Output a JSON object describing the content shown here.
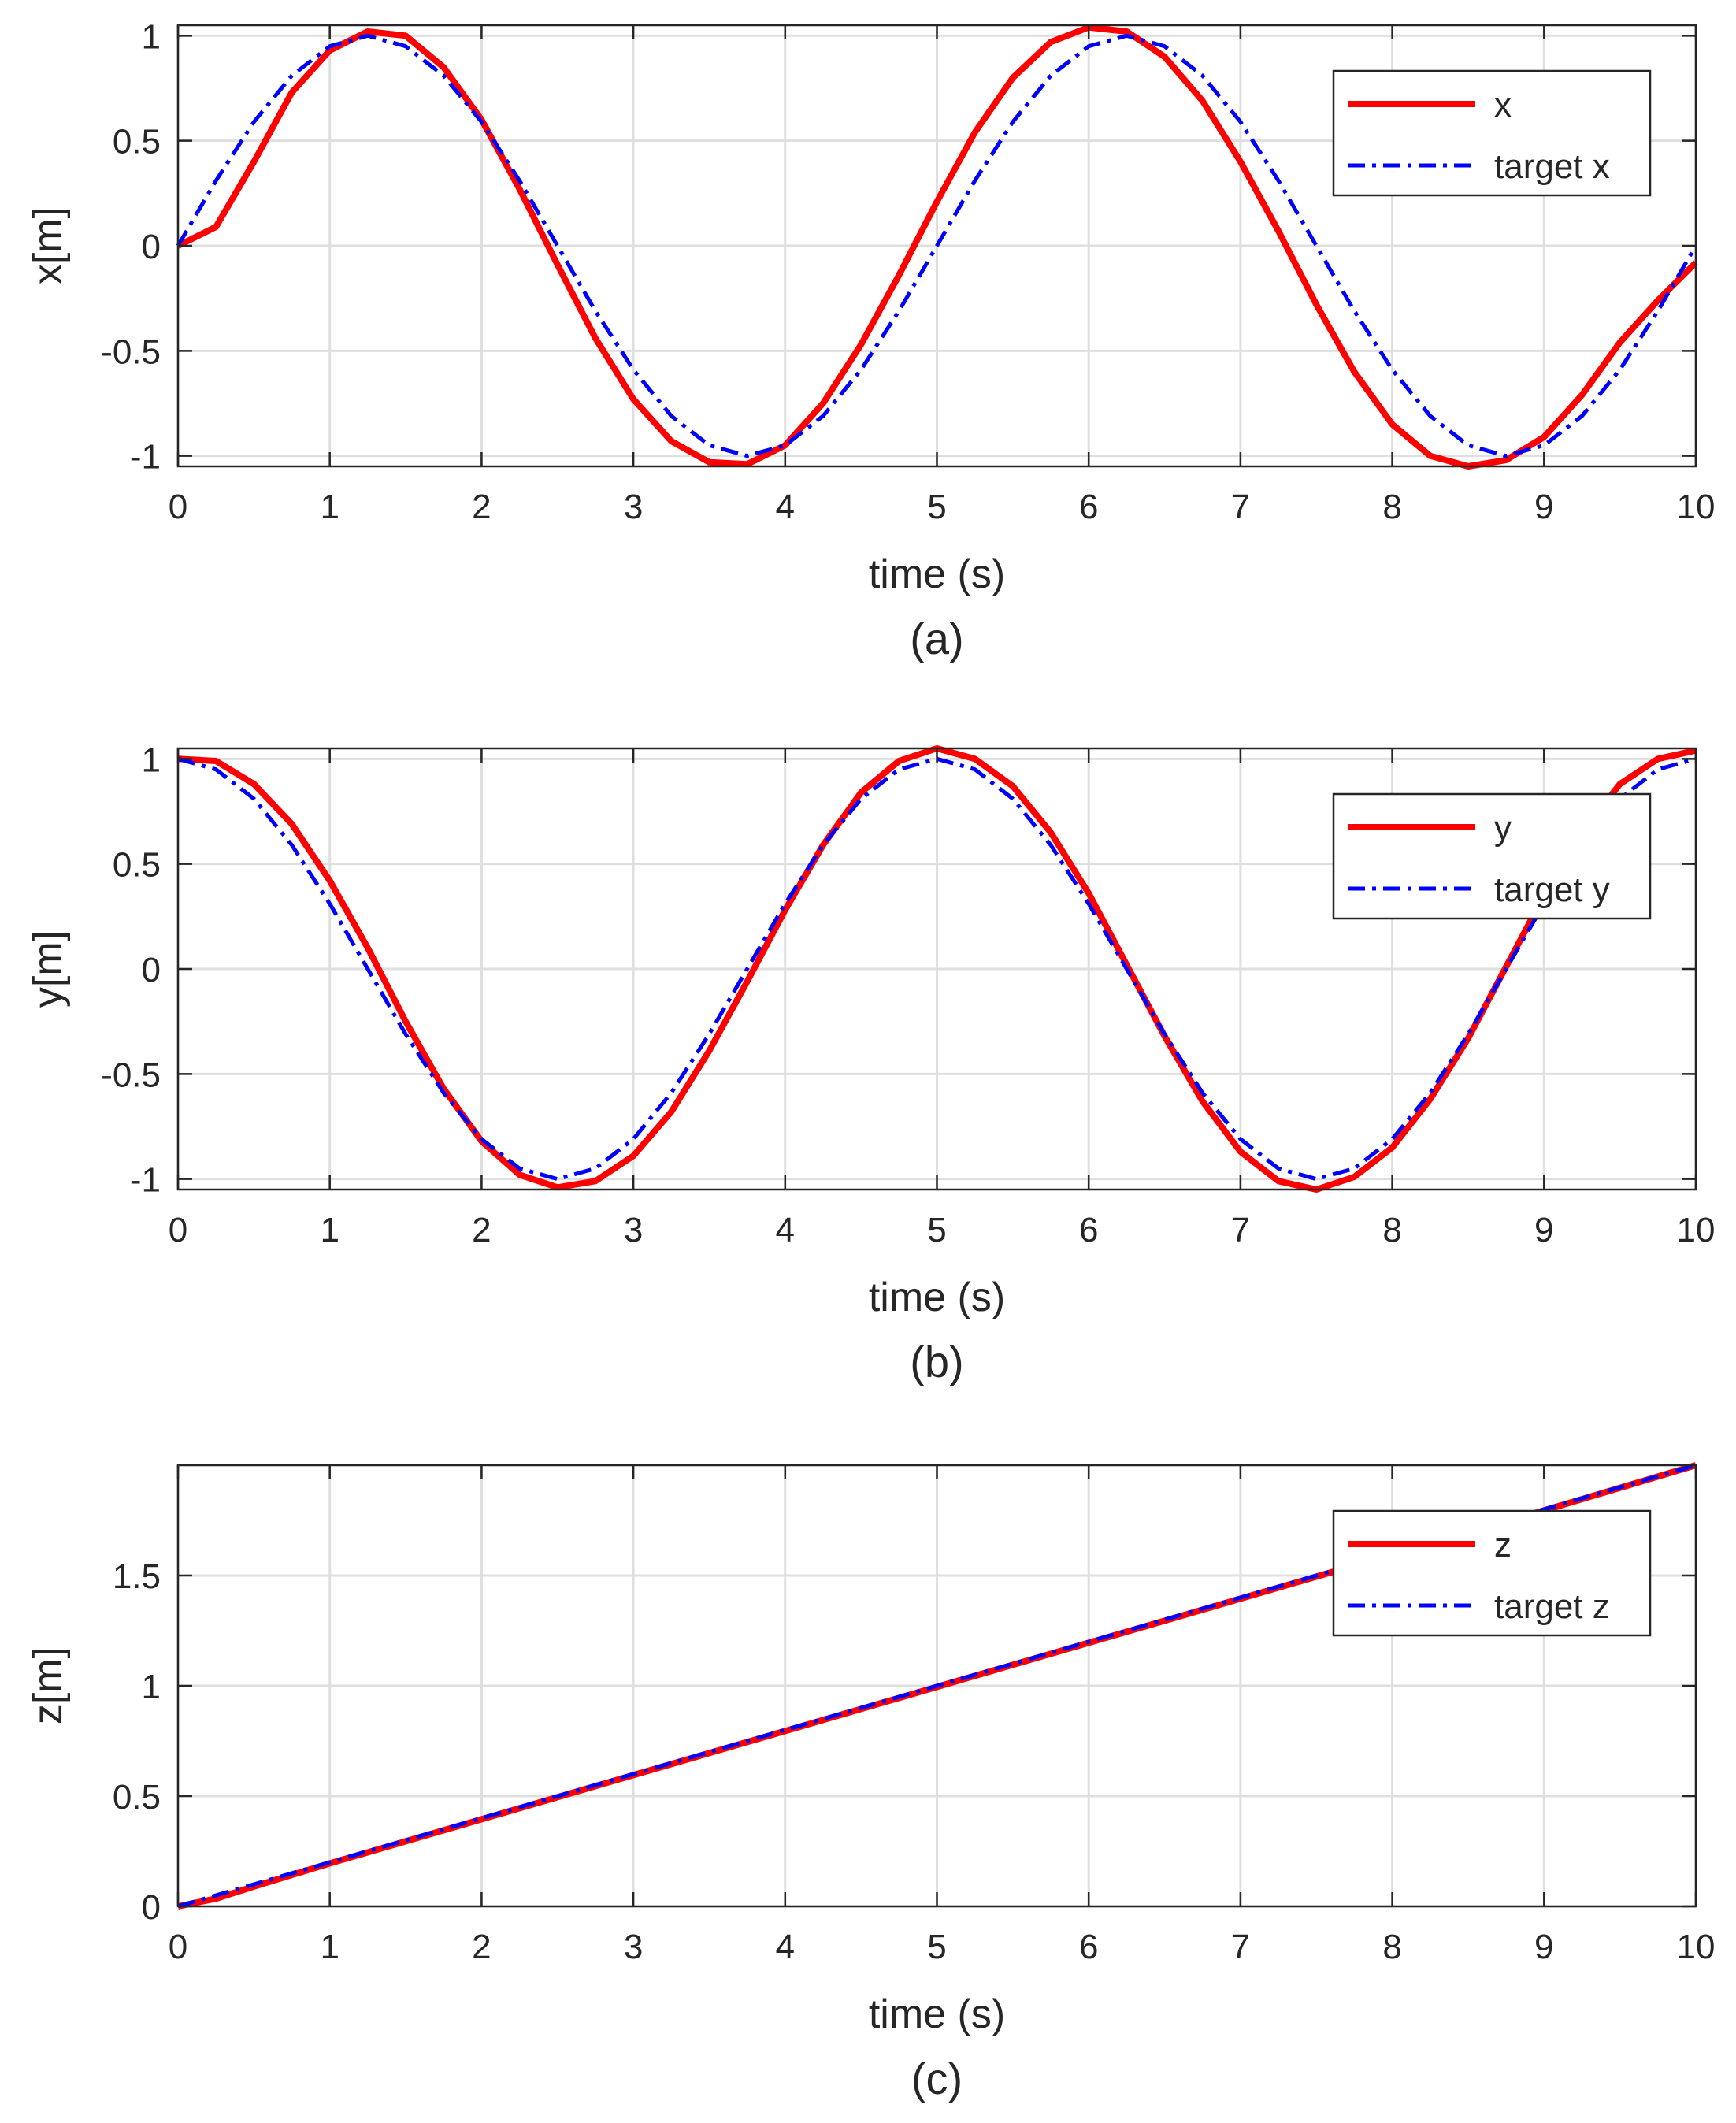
{
  "chart_data": [
    {
      "type": "line",
      "panel_label": "(a)",
      "xlabel": "time (s)",
      "ylabel": "x[m]",
      "xlim": [
        0,
        10
      ],
      "ylim": [
        -1.05,
        1.05
      ],
      "xticks": [
        0,
        1,
        2,
        3,
        4,
        5,
        6,
        7,
        8,
        9,
        10
      ],
      "yticks": [
        -1,
        -0.5,
        0,
        0.5,
        1
      ],
      "ytick_labels": [
        "-1",
        "-0.5",
        "0",
        "0.5",
        "1"
      ],
      "grid": true,
      "legend_position": "top-right",
      "x": [
        0,
        0.25,
        0.5,
        0.75,
        1,
        1.25,
        1.5,
        1.75,
        2,
        2.25,
        2.5,
        2.75,
        3,
        3.25,
        3.5,
        3.75,
        4,
        4.25,
        4.5,
        4.75,
        5,
        5.25,
        5.5,
        5.75,
        6,
        6.25,
        6.5,
        6.75,
        7,
        7.25,
        7.5,
        7.75,
        8,
        8.25,
        8.5,
        8.75,
        9,
        9.25,
        9.5,
        9.75,
        10
      ],
      "series": [
        {
          "name": "x",
          "color": "#ff0000",
          "style": "solid",
          "values": [
            0,
            0.09,
            0.4,
            0.73,
            0.93,
            1.02,
            1.0,
            0.85,
            0.6,
            0.27,
            -0.09,
            -0.44,
            -0.73,
            -0.93,
            -1.03,
            -1.04,
            -0.95,
            -0.75,
            -0.47,
            -0.14,
            0.21,
            0.54,
            0.8,
            0.97,
            1.04,
            1.02,
            0.9,
            0.69,
            0.4,
            0.07,
            -0.28,
            -0.6,
            -0.85,
            -1.0,
            -1.05,
            -1.02,
            -0.91,
            -0.71,
            -0.46,
            -0.26,
            -0.08
          ]
        },
        {
          "name": "target x",
          "color": "#0000ff",
          "style": "dashdot",
          "values": [
            0,
            0.31,
            0.59,
            0.81,
            0.95,
            1.0,
            0.95,
            0.81,
            0.59,
            0.31,
            0,
            -0.31,
            -0.59,
            -0.81,
            -0.95,
            -1.0,
            -0.95,
            -0.81,
            -0.59,
            -0.31,
            0,
            0.31,
            0.59,
            0.81,
            0.95,
            1.0,
            0.95,
            0.81,
            0.59,
            0.31,
            0,
            -0.31,
            -0.59,
            -0.81,
            -0.95,
            -1.0,
            -0.95,
            -0.81,
            -0.59,
            -0.31,
            0
          ]
        }
      ]
    },
    {
      "type": "line",
      "panel_label": "(b)",
      "xlabel": "time (s)",
      "ylabel": "y[m]",
      "xlim": [
        0,
        10
      ],
      "ylim": [
        -1.05,
        1.05
      ],
      "xticks": [
        0,
        1,
        2,
        3,
        4,
        5,
        6,
        7,
        8,
        9,
        10
      ],
      "yticks": [
        -1,
        -0.5,
        0,
        0.5,
        1
      ],
      "ytick_labels": [
        "-1",
        "-0.5",
        "0",
        "0.5",
        "1"
      ],
      "grid": true,
      "legend_position": "top-right",
      "x": [
        0,
        0.25,
        0.5,
        0.75,
        1,
        1.25,
        1.5,
        1.75,
        2,
        2.25,
        2.5,
        2.75,
        3,
        3.25,
        3.5,
        3.75,
        4,
        4.25,
        4.5,
        4.75,
        5,
        5.25,
        5.5,
        5.75,
        6,
        6.25,
        6.5,
        6.75,
        7,
        7.25,
        7.5,
        7.75,
        8,
        8.25,
        8.5,
        8.75,
        9,
        9.25,
        9.5,
        9.75,
        10
      ],
      "series": [
        {
          "name": "y",
          "color": "#ff0000",
          "style": "solid",
          "values": [
            1.0,
            0.99,
            0.88,
            0.69,
            0.42,
            0.1,
            -0.25,
            -0.57,
            -0.82,
            -0.98,
            -1.04,
            -1.01,
            -0.89,
            -0.68,
            -0.39,
            -0.06,
            0.28,
            0.59,
            0.84,
            0.99,
            1.05,
            1.0,
            0.87,
            0.65,
            0.36,
            0.02,
            -0.32,
            -0.63,
            -0.87,
            -1.01,
            -1.05,
            -0.99,
            -0.85,
            -0.62,
            -0.33,
            0.01,
            0.35,
            0.65,
            0.88,
            1.0,
            1.04
          ]
        },
        {
          "name": "target y",
          "color": "#0000ff",
          "style": "dashdot",
          "values": [
            1.0,
            0.95,
            0.81,
            0.59,
            0.31,
            0,
            -0.31,
            -0.59,
            -0.81,
            -0.95,
            -1.0,
            -0.95,
            -0.81,
            -0.59,
            -0.31,
            0,
            0.31,
            0.59,
            0.81,
            0.95,
            1.0,
            0.95,
            0.81,
            0.59,
            0.31,
            0,
            -0.31,
            -0.59,
            -0.81,
            -0.95,
            -1.0,
            -0.95,
            -0.81,
            -0.59,
            -0.31,
            0,
            0.31,
            0.59,
            0.81,
            0.95,
            1.0
          ]
        }
      ]
    },
    {
      "type": "line",
      "panel_label": "(c)",
      "xlabel": "time (s)",
      "ylabel": "z[m]",
      "xlim": [
        0,
        10
      ],
      "ylim": [
        0,
        2
      ],
      "xticks": [
        0,
        1,
        2,
        3,
        4,
        5,
        6,
        7,
        8,
        9,
        10
      ],
      "yticks": [
        0,
        0.5,
        1,
        1.5
      ],
      "ytick_labels": [
        "0",
        "0.5",
        "1",
        "1.5"
      ],
      "grid": true,
      "legend_position": "top-right",
      "x": [
        0,
        0.25,
        0.5,
        1,
        2,
        3,
        4,
        5,
        6,
        7,
        8,
        9,
        10
      ],
      "series": [
        {
          "name": "z",
          "color": "#ff0000",
          "style": "solid",
          "values": [
            0,
            0.035,
            0.09,
            0.195,
            0.395,
            0.595,
            0.795,
            0.995,
            1.195,
            1.395,
            1.595,
            1.795,
            2.0
          ]
        },
        {
          "name": "target z",
          "color": "#0000ff",
          "style": "dashdot",
          "values": [
            0,
            0.05,
            0.1,
            0.2,
            0.4,
            0.6,
            0.8,
            1.0,
            1.2,
            1.4,
            1.6,
            1.8,
            2.0
          ]
        }
      ]
    }
  ]
}
